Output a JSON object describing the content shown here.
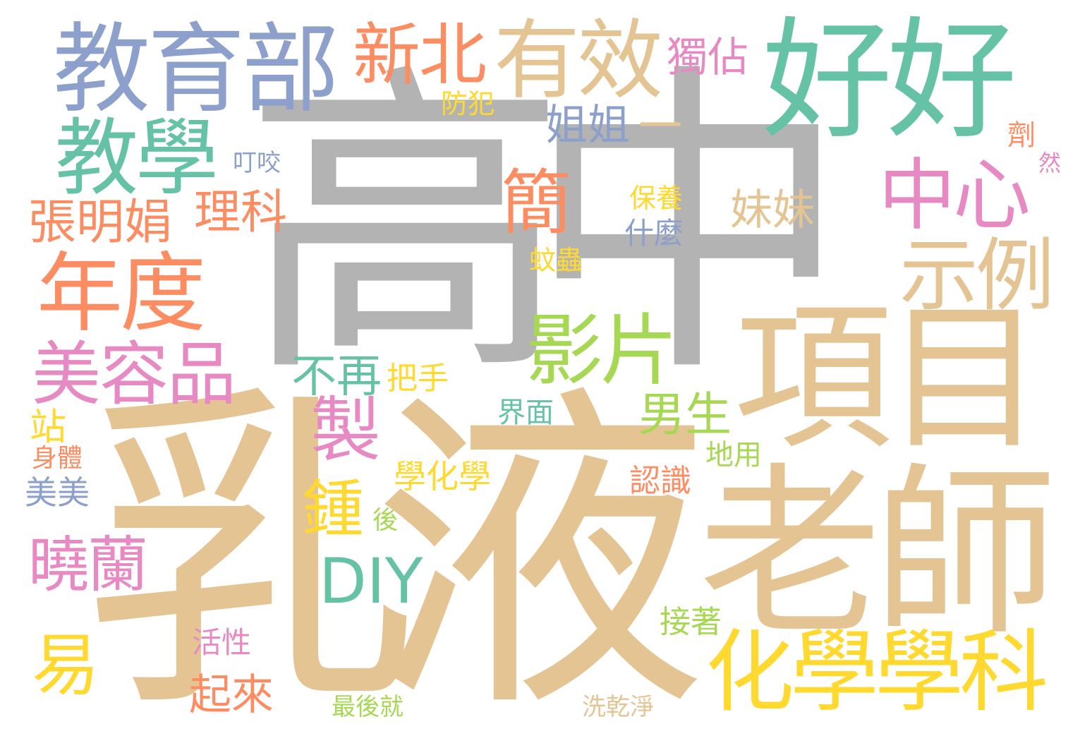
{
  "palette": {
    "gray": "#b3b3b3",
    "tan": "#e5c494",
    "blue": "#8da0cb",
    "green": "#66c2a5",
    "orange": "#fc8d62",
    "pink": "#e78ac3",
    "lime": "#a6d854",
    "yellow": "#ffd92f"
  },
  "words": [
    {
      "text": "高中",
      "color": "#b3b3b3"
    },
    {
      "text": "乳液",
      "color": "#e5c494"
    },
    {
      "text": "老師",
      "color": "#e5c494"
    },
    {
      "text": "項目",
      "color": "#e5c494"
    },
    {
      "text": "好好",
      "color": "#66c2a5"
    },
    {
      "text": "教育部",
      "color": "#8da0cb"
    },
    {
      "text": "有效",
      "color": "#e5c494"
    },
    {
      "text": "教學",
      "color": "#66c2a5"
    },
    {
      "text": "化學學科",
      "color": "#ffd92f"
    },
    {
      "text": "年度",
      "color": "#fc8d62"
    },
    {
      "text": "美容品",
      "color": "#e78ac3"
    },
    {
      "text": "示例",
      "color": "#e5c494"
    },
    {
      "text": "中心",
      "color": "#e78ac3"
    },
    {
      "text": "影片",
      "color": "#a6d854"
    },
    {
      "text": "新北",
      "color": "#fc8d62"
    },
    {
      "text": "簡",
      "color": "#fc8d62"
    },
    {
      "text": "製",
      "color": "#e78ac3"
    },
    {
      "text": "DIY",
      "color": "#66c2a5"
    },
    {
      "text": "曉蘭",
      "color": "#e78ac3"
    },
    {
      "text": "易",
      "color": "#ffd92f"
    },
    {
      "text": "鍾",
      "color": "#ffd92f"
    },
    {
      "text": "張明娟",
      "color": "#fc8d62"
    },
    {
      "text": "理科",
      "color": "#fc8d62"
    },
    {
      "text": "男生",
      "color": "#a6d854"
    },
    {
      "text": "妹妹",
      "color": "#e5c494"
    },
    {
      "text": "姐姐",
      "color": "#8da0cb"
    },
    {
      "text": "獨佔",
      "color": "#e78ac3"
    },
    {
      "text": "不再",
      "color": "#66c2a5"
    },
    {
      "text": "起來",
      "color": "#fc8d62"
    },
    {
      "text": "一",
      "color": "#e5c494"
    },
    {
      "text": "站",
      "color": "#ffd92f"
    },
    {
      "text": "美美",
      "color": "#8da0cb"
    },
    {
      "text": "學化學",
      "color": "#ffd92f"
    },
    {
      "text": "認識",
      "color": "#fc8d62"
    },
    {
      "text": "接著",
      "color": "#a6d854"
    },
    {
      "text": "把手",
      "color": "#ffd92f"
    },
    {
      "text": "界面",
      "color": "#66c2a5"
    },
    {
      "text": "防犯",
      "color": "#ffd92f"
    },
    {
      "text": "保養",
      "color": "#ffd92f"
    },
    {
      "text": "什麼",
      "color": "#8da0cb"
    },
    {
      "text": "叮咬",
      "color": "#8da0cb"
    },
    {
      "text": "地用",
      "color": "#a6d854"
    },
    {
      "text": "活性",
      "color": "#e78ac3"
    },
    {
      "text": "身體",
      "color": "#fc8d62"
    },
    {
      "text": "蚊蟲",
      "color": "#ffd92f"
    },
    {
      "text": "後",
      "color": "#a6d854"
    },
    {
      "text": "最後就",
      "color": "#a6d854"
    },
    {
      "text": "洗乾淨",
      "color": "#e5c494"
    },
    {
      "text": "劑",
      "color": "#fc8d62"
    },
    {
      "text": "然",
      "color": "#e78ac3"
    }
  ]
}
